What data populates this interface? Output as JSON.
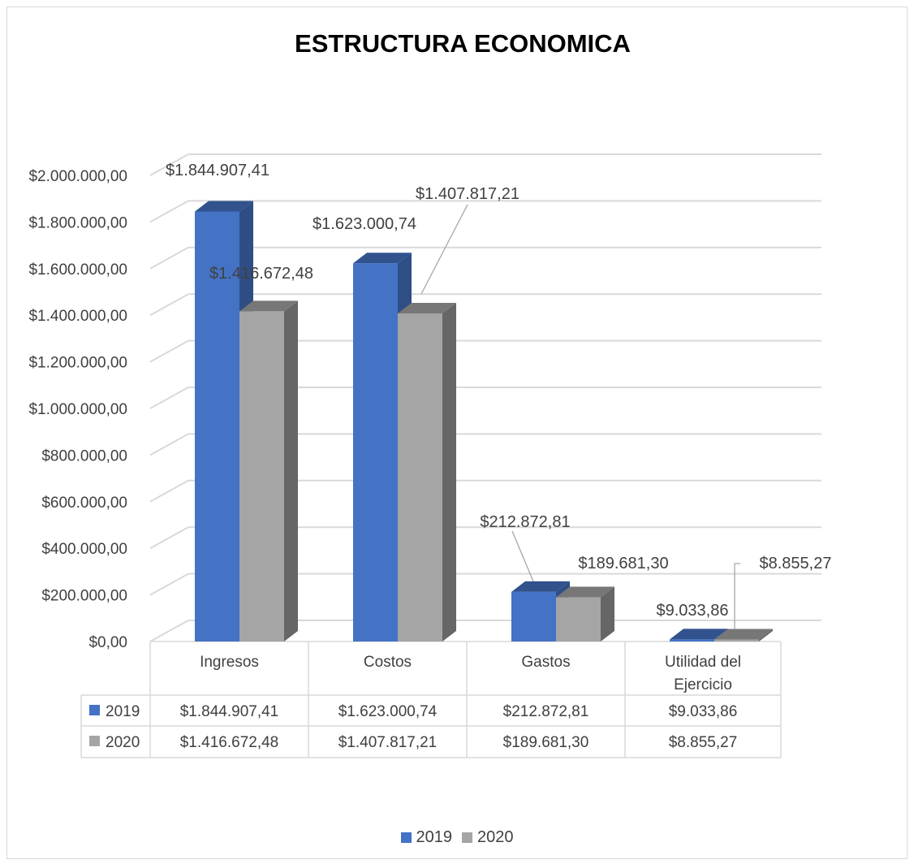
{
  "chart_data": {
    "type": "bar",
    "title": "ESTRUCTURA ECONOMICA",
    "categories": [
      "Ingresos",
      "Costos",
      "Gastos",
      "Utilidad del Ejercicio"
    ],
    "category_lines": [
      [
        "Ingresos"
      ],
      [
        "Costos"
      ],
      [
        "Gastos"
      ],
      [
        "Utilidad del",
        "Ejercicio"
      ]
    ],
    "series": [
      {
        "name": "2019",
        "color": "#4472c4",
        "values": [
          1844907.41,
          1623000.74,
          212872.81,
          9033.86
        ],
        "labels": [
          "$1.844.907,41",
          "$1.623.000,74",
          "$212.872,81",
          "$9.033,86"
        ]
      },
      {
        "name": "2020",
        "color": "#a5a5a5",
        "values": [
          1416672.48,
          1407817.21,
          189681.3,
          8855.27
        ],
        "labels": [
          "$1.416.672,48",
          "$1.407.817,21",
          "$189.681,30",
          "$8.855,27"
        ]
      }
    ],
    "ylim": [
      0,
      2000000
    ],
    "y_ticks": [
      "$0,00",
      "$200.000,00",
      "$400.000,00",
      "$600.000,00",
      "$800.000,00",
      "$1.000.000,00",
      "$1.200.000,00",
      "$1.400.000,00",
      "$1.600.000,00",
      "$1.800.000,00",
      "$2.000.000,00"
    ],
    "grid": true,
    "projection": "3d",
    "data_table": true,
    "legend_position": "bottom"
  }
}
